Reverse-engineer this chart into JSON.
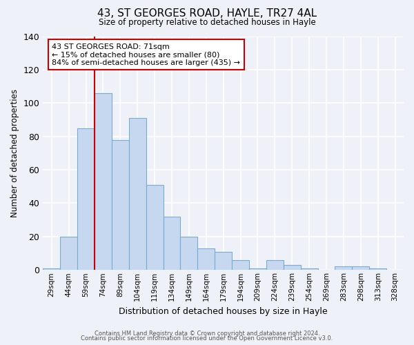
{
  "title": "43, ST GEORGES ROAD, HAYLE, TR27 4AL",
  "subtitle": "Size of property relative to detached houses in Hayle",
  "xlabel": "Distribution of detached houses by size in Hayle",
  "ylabel": "Number of detached properties",
  "bin_labels": [
    "29sqm",
    "44sqm",
    "59sqm",
    "74sqm",
    "89sqm",
    "104sqm",
    "119sqm",
    "134sqm",
    "149sqm",
    "164sqm",
    "179sqm",
    "194sqm",
    "209sqm",
    "224sqm",
    "239sqm",
    "254sqm",
    "269sqm",
    "283sqm",
    "298sqm",
    "313sqm",
    "328sqm"
  ],
  "bar_values": [
    1,
    20,
    85,
    106,
    78,
    91,
    51,
    32,
    20,
    13,
    11,
    6,
    1,
    6,
    3,
    1,
    0,
    2,
    2,
    1,
    0
  ],
  "bar_color": "#c5d8f0",
  "bar_edge_color": "#7aaad4",
  "ylim": [
    0,
    140
  ],
  "yticks": [
    0,
    20,
    40,
    60,
    80,
    100,
    120,
    140
  ],
  "vline_x_index": 3,
  "vline_color": "#cc0000",
  "annotation_text": "43 ST GEORGES ROAD: 71sqm\n← 15% of detached houses are smaller (80)\n84% of semi-detached houses are larger (435) →",
  "annotation_box_color": "#ffffff",
  "annotation_box_edge": "#cc0000",
  "footer_line1": "Contains HM Land Registry data © Crown copyright and database right 2024.",
  "footer_line2": "Contains public sector information licensed under the Open Government Licence v3.0.",
  "background_color": "#eef2f8"
}
